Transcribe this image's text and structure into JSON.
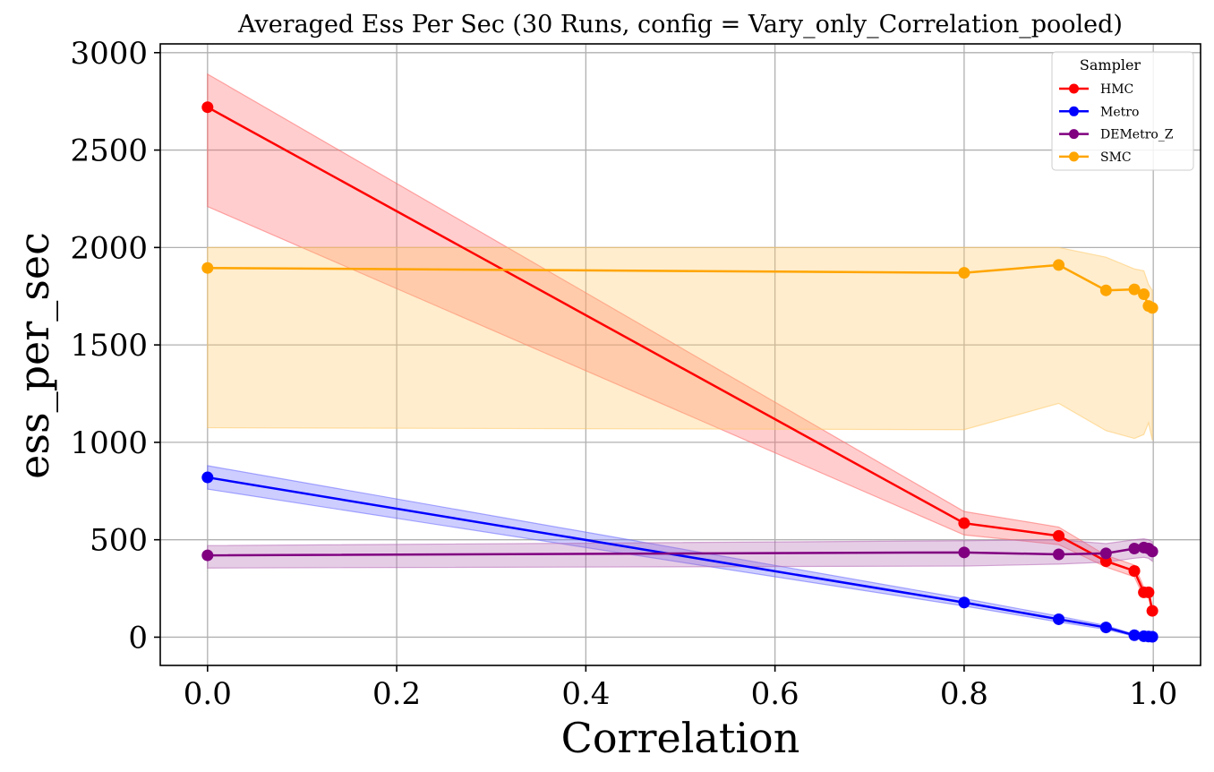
{
  "chart_data": {
    "type": "line",
    "title": "Averaged Ess Per Sec (30 Runs, config = Vary_only_Correlation_pooled)",
    "xlabel": "Correlation",
    "ylabel": "ess_per_sec",
    "xlim": [
      -0.05,
      1.05
    ],
    "ylim": [
      -145,
      3045
    ],
    "xticks": [
      0.0,
      0.2,
      0.4,
      0.6,
      0.8,
      1.0
    ],
    "xtick_labels": [
      "0.0",
      "0.2",
      "0.4",
      "0.6",
      "0.8",
      "1.0"
    ],
    "yticks": [
      0,
      500,
      1000,
      1500,
      2000,
      2500,
      3000
    ],
    "ytick_labels": [
      "0",
      "500",
      "1000",
      "1500",
      "2000",
      "2500",
      "3000"
    ],
    "grid": true,
    "legend": {
      "title": "Sampler",
      "position": "top-right"
    },
    "series": [
      {
        "name": "HMC",
        "color": "#ff0000",
        "band_color": "#ff6666",
        "x": [
          0.0,
          0.8,
          0.9,
          0.95,
          0.98,
          0.99,
          0.995,
          0.999
        ],
        "y": [
          2720,
          585,
          520,
          390,
          340,
          230,
          230,
          135
        ],
        "lower": [
          2210,
          525,
          475,
          360,
          310,
          205,
          205,
          125
        ],
        "upper": [
          2890,
          645,
          565,
          420,
          370,
          255,
          255,
          150
        ]
      },
      {
        "name": "Metro",
        "color": "#0000ff",
        "band_color": "#6666ff",
        "x": [
          0.0,
          0.8,
          0.9,
          0.95,
          0.98,
          0.99,
          0.995,
          0.999
        ],
        "y": [
          820,
          178,
          92,
          50,
          10,
          5,
          3,
          2
        ],
        "lower": [
          760,
          160,
          78,
          40,
          5,
          2,
          1,
          0
        ],
        "upper": [
          880,
          198,
          108,
          60,
          15,
          8,
          5,
          4
        ]
      },
      {
        "name": "DEMetro_Z",
        "color": "#800080",
        "band_color": "#b366b3",
        "x": [
          0.0,
          0.8,
          0.9,
          0.95,
          0.98,
          0.99,
          0.995,
          0.999
        ],
        "y": [
          420,
          435,
          425,
          430,
          455,
          460,
          455,
          440
        ],
        "lower": [
          355,
          365,
          375,
          385,
          405,
          410,
          405,
          390
        ],
        "upper": [
          470,
          495,
          500,
          480,
          500,
          505,
          500,
          490
        ]
      },
      {
        "name": "SMC",
        "color": "#ffa500",
        "band_color": "#ffc966",
        "x": [
          0.0,
          0.8,
          0.9,
          0.95,
          0.98,
          0.99,
          0.995,
          0.999
        ],
        "y": [
          1895,
          1870,
          1910,
          1780,
          1785,
          1760,
          1700,
          1690
        ],
        "lower": [
          1075,
          1065,
          1200,
          1060,
          1020,
          1040,
          1100,
          1010
        ],
        "upper": [
          2000,
          2000,
          2000,
          1950,
          1890,
          1880,
          1810,
          1780
        ]
      }
    ]
  }
}
